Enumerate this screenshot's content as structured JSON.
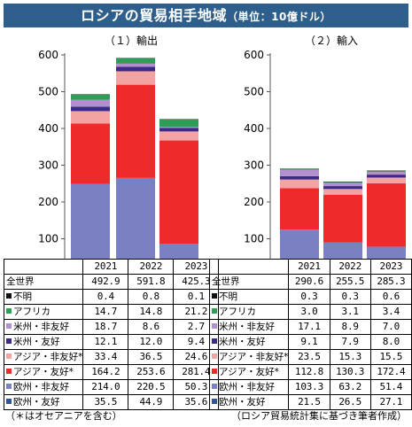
{
  "title": "ロシアの貿易相手地域",
  "title_unit": "（単位：10億ドル）",
  "chart_data": [
    {
      "type": "bar",
      "stacked": true,
      "title": "（１）輸出",
      "categories": [
        "2021",
        "2022",
        "2023"
      ],
      "ylim": [
        0,
        600
      ],
      "yticks": [
        0,
        100,
        200,
        300,
        400,
        500,
        600
      ],
      "grid": false,
      "series": [
        {
          "name": "欧州・友好",
          "color": "#2f5597",
          "values": [
            35.5,
            44.9,
            35.6
          ]
        },
        {
          "name": "欧州・非友好",
          "color": "#7b7fc4",
          "values": [
            214.0,
            220.5,
            50.3
          ]
        },
        {
          "name": "アジア・友好*",
          "color": "#ee2a2a",
          "values": [
            164.2,
            253.6,
            281.4
          ]
        },
        {
          "name": "アジア・非友好*",
          "color": "#f4a3a3",
          "values": [
            33.4,
            36.5,
            24.6
          ]
        },
        {
          "name": "米州・友好",
          "color": "#3b2a88",
          "values": [
            12.1,
            12.0,
            9.4
          ]
        },
        {
          "name": "米州・非友好",
          "color": "#b38fd0",
          "values": [
            18.7,
            8.6,
            2.7
          ]
        },
        {
          "name": "アフリカ",
          "color": "#2e9e57",
          "values": [
            14.7,
            14.8,
            21.2
          ]
        },
        {
          "name": "不明",
          "color": "#111111",
          "values": [
            0.4,
            0.8,
            0.1
          ]
        }
      ],
      "totals_label": "全世界",
      "totals": [
        "492.9",
        "591.8",
        "425.3"
      ],
      "table_rows": [
        {
          "label": "不明",
          "color": "#111111",
          "values": [
            "0.4",
            "0.8",
            "0.1"
          ]
        },
        {
          "label": "アフリカ",
          "color": "#2e9e57",
          "values": [
            "14.7",
            "14.8",
            "21.2"
          ]
        },
        {
          "label": "米州・非友好",
          "color": "#b38fd0",
          "values": [
            "18.7",
            "8.6",
            "2.7"
          ]
        },
        {
          "label": "米州・友好",
          "color": "#3b2a88",
          "values": [
            "12.1",
            "12.0",
            "9.4"
          ]
        },
        {
          "label": "アジア・非友好*",
          "color": "#f4a3a3",
          "values": [
            "33.4",
            "36.5",
            "24.6"
          ]
        },
        {
          "label": "アジア・友好*",
          "color": "#ee2a2a",
          "values": [
            "164.2",
            "253.6",
            "281.4"
          ]
        },
        {
          "label": "欧州・非友好",
          "color": "#7b7fc4",
          "values": [
            "214.0",
            "220.5",
            "50.3"
          ]
        },
        {
          "label": "欧州・友好",
          "color": "#2f5597",
          "values": [
            "35.5",
            "44.9",
            "35.6"
          ]
        }
      ]
    },
    {
      "type": "bar",
      "stacked": true,
      "title": "（２）輸入",
      "categories": [
        "2021",
        "2022",
        "2023"
      ],
      "ylim": [
        0,
        600
      ],
      "yticks": [
        0,
        100,
        200,
        300,
        400,
        500,
        600
      ],
      "grid": false,
      "series": [
        {
          "name": "欧州・友好",
          "color": "#2f5597",
          "values": [
            21.5,
            26.5,
            27.1
          ]
        },
        {
          "name": "欧州・非友好",
          "color": "#7b7fc4",
          "values": [
            103.3,
            63.2,
            51.4
          ]
        },
        {
          "name": "アジア・友好*",
          "color": "#ee2a2a",
          "values": [
            112.8,
            130.3,
            172.4
          ]
        },
        {
          "name": "アジア・非友好*",
          "color": "#f4a3a3",
          "values": [
            23.5,
            15.3,
            15.5
          ]
        },
        {
          "name": "米州・友好",
          "color": "#3b2a88",
          "values": [
            9.1,
            7.9,
            8.0
          ]
        },
        {
          "name": "米州・非友好",
          "color": "#b38fd0",
          "values": [
            17.1,
            8.9,
            7.0
          ]
        },
        {
          "name": "アフリカ",
          "color": "#2e9e57",
          "values": [
            3.0,
            3.1,
            3.4
          ]
        },
        {
          "name": "不明",
          "color": "#111111",
          "values": [
            0.3,
            0.3,
            0.6
          ]
        }
      ],
      "totals_label": "全世界",
      "totals": [
        "290.6",
        "255.5",
        "285.3"
      ],
      "table_rows": [
        {
          "label": "不明",
          "color": "#111111",
          "values": [
            "0.3",
            "0.3",
            "0.6"
          ]
        },
        {
          "label": "アフリカ",
          "color": "#2e9e57",
          "values": [
            "3.0",
            "3.1",
            "3.4"
          ]
        },
        {
          "label": "米州・非友好",
          "color": "#b38fd0",
          "values": [
            "17.1",
            "8.9",
            "7.0"
          ]
        },
        {
          "label": "米州・友好",
          "color": "#3b2a88",
          "values": [
            "9.1",
            "7.9",
            "8.0"
          ]
        },
        {
          "label": "アジア・非友好*",
          "color": "#f4a3a3",
          "values": [
            "23.5",
            "15.3",
            "15.5"
          ]
        },
        {
          "label": "アジア・友好*",
          "color": "#ee2a2a",
          "values": [
            "112.8",
            "130.3",
            "172.4"
          ]
        },
        {
          "label": "欧州・非友好",
          "color": "#7b7fc4",
          "values": [
            "103.3",
            "63.2",
            "51.4"
          ]
        },
        {
          "label": "欧州・友好",
          "color": "#2f5597",
          "values": [
            "21.5",
            "26.5",
            "27.1"
          ]
        }
      ]
    }
  ],
  "footnote_left": "（＊はオセアニアを含む）",
  "footnote_right": "（ロシア貿易統計集に基づき筆者作成）"
}
